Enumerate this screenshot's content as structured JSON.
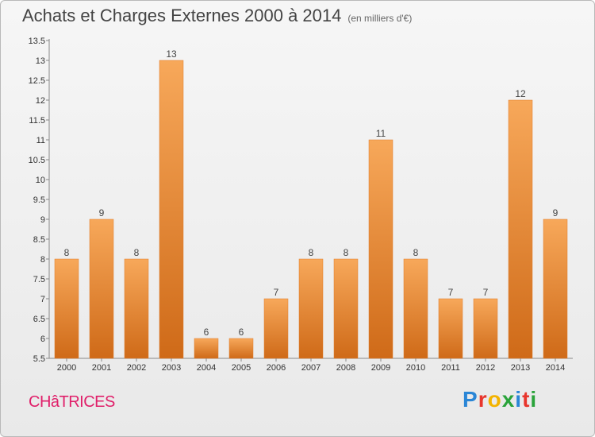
{
  "header": {
    "title": "Achats et Charges Externes 2000 à 2014",
    "unit": "(en milliers d'€)"
  },
  "footer": {
    "commune": "CHâTRICES",
    "brand": "Proxiti",
    "brand_colors": [
      "#2a86d6",
      "#e8362d",
      "#f3b300",
      "#2aa33a",
      "#2a86d6",
      "#e8362d",
      "#2aa33a"
    ]
  },
  "colors": {
    "bar_light": "#f7a85a",
    "bar_dark": "#cf6a18",
    "commune": "#e0206a"
  },
  "chart_data": {
    "type": "bar",
    "categories": [
      "2000",
      "2001",
      "2002",
      "2003",
      "2004",
      "2005",
      "2006",
      "2007",
      "2008",
      "2009",
      "2010",
      "2011",
      "2012",
      "2013",
      "2014"
    ],
    "values": [
      8,
      9,
      8,
      13,
      6,
      6,
      7,
      8,
      8,
      11,
      8,
      7,
      7,
      12,
      9
    ],
    "ylim": [
      5.5,
      13.5
    ],
    "yticks": [
      "5.5",
      "6",
      "6.5",
      "7",
      "7.5",
      "8",
      "8.5",
      "9",
      "9.5",
      "10",
      "10.5",
      "11",
      "11.5",
      "12",
      "12.5",
      "13",
      "13.5"
    ],
    "grid": false,
    "xlabel": "",
    "ylabel": ""
  }
}
